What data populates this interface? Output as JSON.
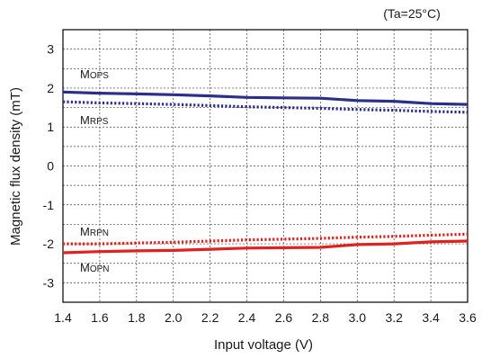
{
  "chart_data": {
    "type": "line",
    "title": "",
    "condition_note": "(Ta=25°C)",
    "xlabel": "Input voltage (V)",
    "ylabel": "Magnetic flux density (mT)",
    "xlim": [
      1.4,
      3.6
    ],
    "ylim": [
      -3.5,
      3.5
    ],
    "xticks": [
      "1.4",
      "1.6",
      "1.8",
      "2.0",
      "2.2",
      "2.4",
      "2.6",
      "2.8",
      "3.0",
      "3.2",
      "3.4",
      "3.6"
    ],
    "yticks": [
      "3",
      "2",
      "1",
      "0",
      "-1",
      "-2",
      "-3"
    ],
    "grid": true,
    "x": [
      1.4,
      1.6,
      1.8,
      2.0,
      2.2,
      2.4,
      2.6,
      2.8,
      3.0,
      3.2,
      3.4,
      3.6
    ],
    "series": [
      {
        "name": "MOPS",
        "label_main": "M",
        "label_sub": "OPS",
        "color": "#2b2f8c",
        "style": "solid",
        "values": [
          1.9,
          1.87,
          1.85,
          1.83,
          1.8,
          1.76,
          1.75,
          1.74,
          1.68,
          1.66,
          1.6,
          1.58
        ]
      },
      {
        "name": "MRPS",
        "label_main": "M",
        "label_sub": "RPS",
        "color": "#2b2f8c",
        "style": "dotted",
        "values": [
          1.65,
          1.62,
          1.6,
          1.58,
          1.55,
          1.52,
          1.5,
          1.48,
          1.45,
          1.43,
          1.4,
          1.38
        ]
      },
      {
        "name": "MRPN",
        "label_main": "M",
        "label_sub": "RPN",
        "color": "#e0211d",
        "style": "dotted",
        "values": [
          -2.0,
          -2.0,
          -1.98,
          -1.96,
          -1.93,
          -1.9,
          -1.88,
          -1.86,
          -1.83,
          -1.81,
          -1.78,
          -1.75
        ]
      },
      {
        "name": "MOPN",
        "label_main": "M",
        "label_sub": "OPN",
        "color": "#e0211d",
        "style": "solid",
        "values": [
          -2.23,
          -2.2,
          -2.18,
          -2.17,
          -2.14,
          -2.11,
          -2.1,
          -2.09,
          -2.02,
          -2.0,
          -1.95,
          -1.93
        ]
      }
    ]
  }
}
